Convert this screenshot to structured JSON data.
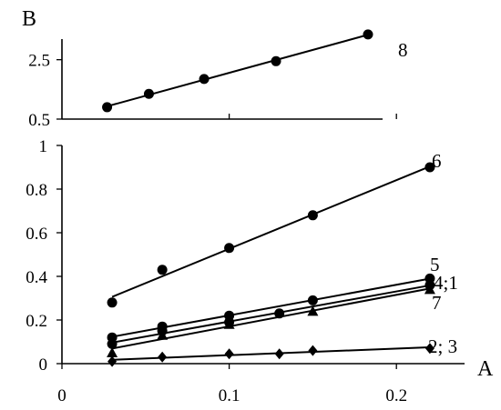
{
  "chart_data": [
    {
      "type": "scatter",
      "panel": "top",
      "ylabel": "B",
      "ylim": [
        0.5,
        3.5
      ],
      "yticks": [
        "2.5",
        "0.5"
      ],
      "grid": false,
      "series": [
        {
          "name": "8",
          "marker": "circle",
          "x": [
            0.027,
            0.052,
            0.085,
            0.128,
            0.183
          ],
          "y": [
            0.9,
            1.35,
            1.85,
            2.45,
            3.35
          ]
        }
      ]
    },
    {
      "type": "scatter",
      "panel": "bottom",
      "xlabel": "A",
      "xlim": [
        0,
        0.25
      ],
      "ylim": [
        0,
        1
      ],
      "xticks": [
        "0",
        "0.1",
        "0.2"
      ],
      "yticks": [
        "0",
        "0.2",
        "0.4",
        "0.6",
        "0.8",
        "1"
      ],
      "grid": false,
      "series": [
        {
          "name": "6",
          "marker": "circle",
          "x": [
            0.03,
            0.06,
            0.1,
            0.15,
            0.22
          ],
          "y": [
            0.28,
            0.43,
            0.53,
            0.68,
            0.9
          ]
        },
        {
          "name": "5",
          "marker": "circle",
          "x": [
            0.03,
            0.06,
            0.1,
            0.15,
            0.22
          ],
          "y": [
            0.12,
            0.17,
            0.22,
            0.29,
            0.39
          ]
        },
        {
          "name": "4;1",
          "marker": "circle",
          "x": [
            0.03,
            0.06,
            0.1,
            0.13,
            0.22
          ],
          "y": [
            0.09,
            0.15,
            0.19,
            0.23,
            0.36
          ]
        },
        {
          "name": "7",
          "marker": "triangle",
          "x": [
            0.03,
            0.06,
            0.1,
            0.15,
            0.22
          ],
          "y": [
            0.05,
            0.13,
            0.18,
            0.24,
            0.34
          ]
        },
        {
          "name": "2; 3",
          "marker": "diamond",
          "x": [
            0.03,
            0.06,
            0.1,
            0.13,
            0.15,
            0.22
          ],
          "y": [
            0.01,
            0.03,
            0.045,
            0.045,
            0.06,
            0.07
          ]
        }
      ]
    }
  ]
}
